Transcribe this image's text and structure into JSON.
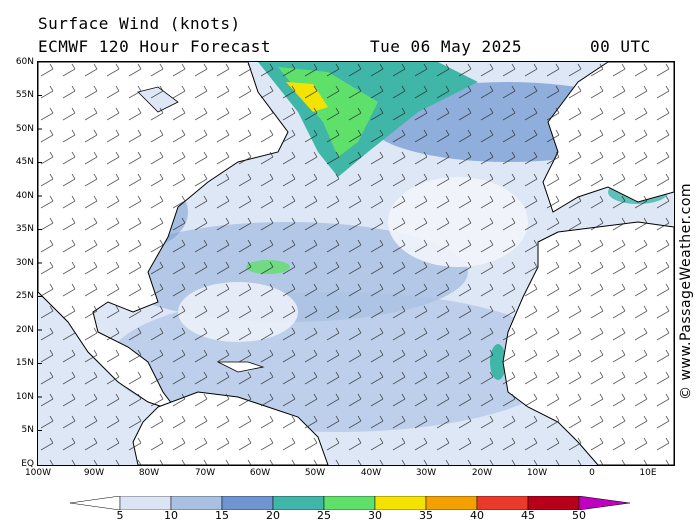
{
  "header": {
    "line1": "Surface Wind (knots)",
    "line2": "ECMWF 120 Hour Forecast",
    "date": "Tue 06 May 2025",
    "time": "00 UTC"
  },
  "credit": "© www.PassageWeather.com",
  "lat_labels": [
    "60N",
    "55N",
    "50N",
    "45N",
    "40N",
    "35N",
    "30N",
    "25N",
    "20N",
    "15N",
    "10N",
    "5N",
    "EQ"
  ],
  "lon_labels": [
    "100W",
    "90W",
    "80W",
    "70W",
    "60W",
    "50W",
    "40W",
    "30W",
    "20W",
    "10W",
    "0",
    "10E"
  ],
  "legend": {
    "labels": [
      "5",
      "10",
      "15",
      "20",
      "25",
      "30",
      "35",
      "40",
      "45",
      "50"
    ],
    "colors": [
      "#ffffff",
      "#dbe4f4",
      "#a9c0e2",
      "#6f95d0",
      "#3fb6a8",
      "#5fe06a",
      "#f4e300",
      "#f4a000",
      "#ec3a2a",
      "#b8001a",
      "#c000c0"
    ]
  },
  "regions": {
    "north_america": "land",
    "south_america": "land",
    "africa": "land",
    "europe": "land",
    "strong_winds": "Labrador Sea / Grand Banks (25-35 kt)"
  }
}
